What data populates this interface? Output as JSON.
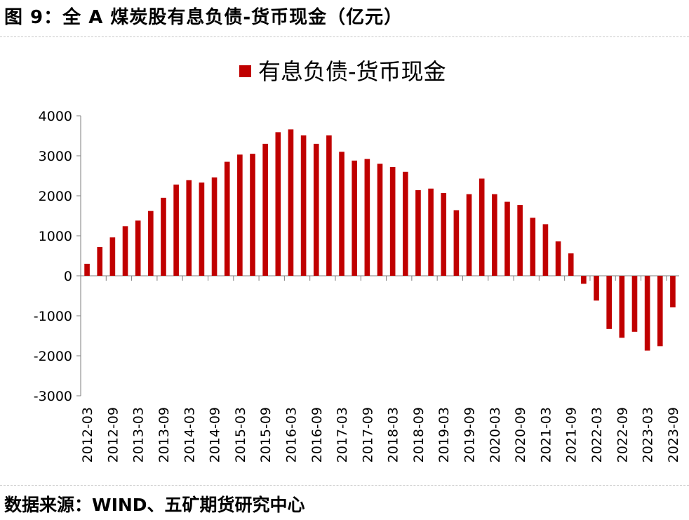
{
  "figure": {
    "title": "图 9：全 A 煤炭股有息负债-货币现金（亿元）",
    "source": "数据来源：WIND、五矿期货研究中心"
  },
  "colors": {
    "bar": "#c00000",
    "axis": "#7f7f7f"
  },
  "chart_data": {
    "type": "bar",
    "legend": "top-center",
    "grid": false,
    "ylim": [
      -3000,
      4000
    ],
    "yticks": [
      4000,
      3000,
      2000,
      1000,
      0,
      -1000,
      -2000,
      -3000
    ],
    "xtick_labels": [
      "2012-03",
      "2012-09",
      "2013-03",
      "2013-09",
      "2014-03",
      "2014-09",
      "2015-03",
      "2015-09",
      "2016-03",
      "2016-09",
      "2017-03",
      "2017-09",
      "2018-03",
      "2018-09",
      "2019-03",
      "2019-09",
      "2020-03",
      "2020-09",
      "2021-03",
      "2021-09",
      "2022-03",
      "2022-09",
      "2023-03",
      "2023-09"
    ],
    "categories": [
      "2012-03",
      "2012-06",
      "2012-09",
      "2012-12",
      "2013-03",
      "2013-06",
      "2013-09",
      "2013-12",
      "2014-03",
      "2014-06",
      "2014-09",
      "2014-12",
      "2015-03",
      "2015-06",
      "2015-09",
      "2015-12",
      "2016-03",
      "2016-06",
      "2016-09",
      "2016-12",
      "2017-03",
      "2017-06",
      "2017-09",
      "2017-12",
      "2018-03",
      "2018-06",
      "2018-09",
      "2018-12",
      "2019-03",
      "2019-06",
      "2019-09",
      "2019-12",
      "2020-03",
      "2020-06",
      "2020-09",
      "2020-12",
      "2021-03",
      "2021-06",
      "2021-09",
      "2021-12",
      "2022-03",
      "2022-06",
      "2022-09",
      "2022-12",
      "2023-03",
      "2023-06",
      "2023-09"
    ],
    "series": [
      {
        "name": "有息负债-货币现金",
        "values": [
          300,
          720,
          960,
          1240,
          1380,
          1620,
          1950,
          2280,
          2390,
          2330,
          2460,
          2850,
          3030,
          3050,
          3300,
          3590,
          3660,
          3510,
          3300,
          3510,
          3100,
          2880,
          2920,
          2800,
          2720,
          2600,
          2140,
          2180,
          2070,
          1640,
          2040,
          2430,
          2040,
          1850,
          1770,
          1450,
          1290,
          860,
          560,
          -200,
          -620,
          -1330,
          -1550,
          -1400,
          -1870,
          -1760,
          -790
        ]
      }
    ]
  }
}
